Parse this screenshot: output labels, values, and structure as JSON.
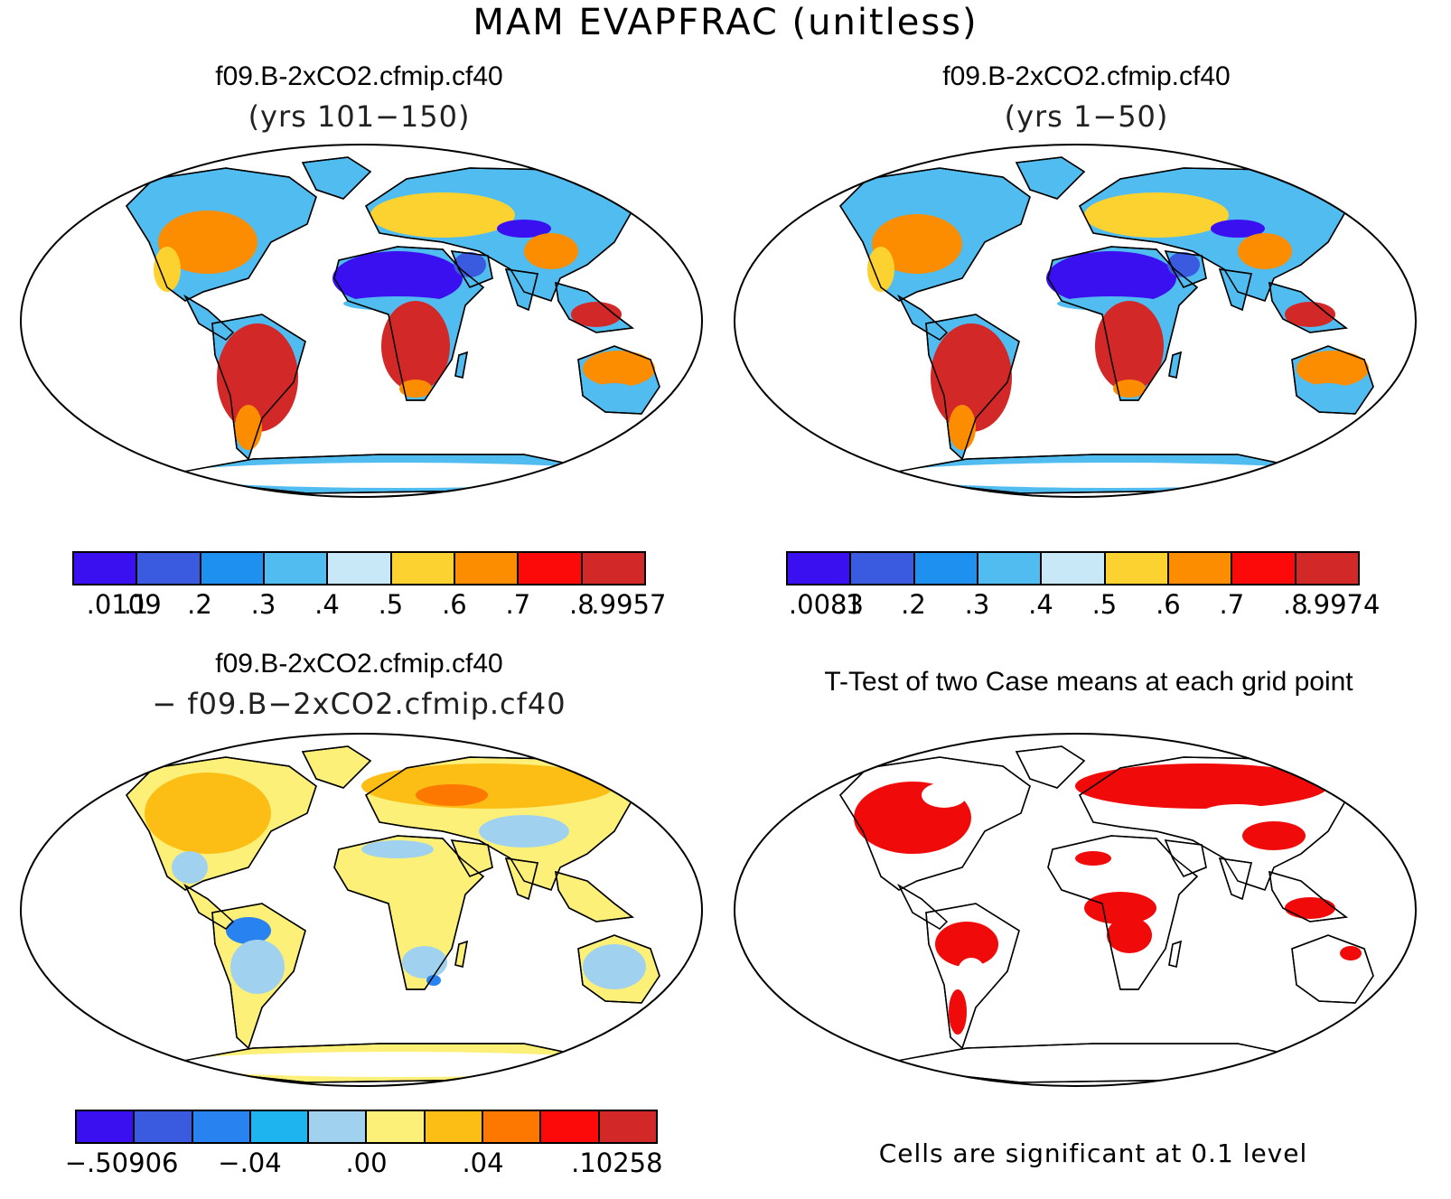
{
  "main_title": "MAM EVAPFRAC (unitless)",
  "panels": [
    {
      "id": "case1",
      "title": "f09.B-2xCO2.cfmip.cf40",
      "subtitle": "(yrs 101−150)",
      "colorbar": {
        "colors": [
          "#3a10f0",
          "#3a5ae0",
          "#1e90f0",
          "#50bcf0",
          "#c8e8f8",
          "#fcd230",
          "#fc8c00",
          "#fc0a0a",
          "#d22828"
        ],
        "labels": [
          ".0109",
          ".1",
          ".2",
          ".3",
          ".4",
          ".5",
          ".6",
          ".7",
          ".8",
          ".9957"
        ]
      }
    },
    {
      "id": "case2",
      "title": "f09.B-2xCO2.cfmip.cf40",
      "subtitle": "(yrs 1−50)",
      "colorbar": {
        "colors": [
          "#3a10f0",
          "#3a5ae0",
          "#1e90f0",
          "#50bcf0",
          "#c8e8f8",
          "#fcd230",
          "#fc8c00",
          "#fc0a0a",
          "#d22828"
        ],
        "labels": [
          ".0083",
          ".1",
          ".2",
          ".3",
          ".4",
          ".5",
          ".6",
          ".7",
          ".8",
          ".9974"
        ]
      }
    },
    {
      "id": "diff",
      "title": "f09.B-2xCO2.cfmip.cf40",
      "subtitle": "− f09.B−2xCO2.cfmip.cf40",
      "colorbar": {
        "colors": [
          "#3a10f0",
          "#3a5ae0",
          "#2882f0",
          "#1eb4f0",
          "#a0d2f0",
          "#fcf078",
          "#fcbe14",
          "#fc7800",
          "#fc0a0a",
          "#d22828"
        ],
        "labels": [
          "−.50906",
          "−.04",
          ".00",
          ".04",
          ".10258"
        ]
      }
    },
    {
      "id": "ttest",
      "title": "T-Test of two Case means at each grid point",
      "note": "Cells are significant at 0.1 level",
      "significant_color": "#f00a0a"
    }
  ]
}
